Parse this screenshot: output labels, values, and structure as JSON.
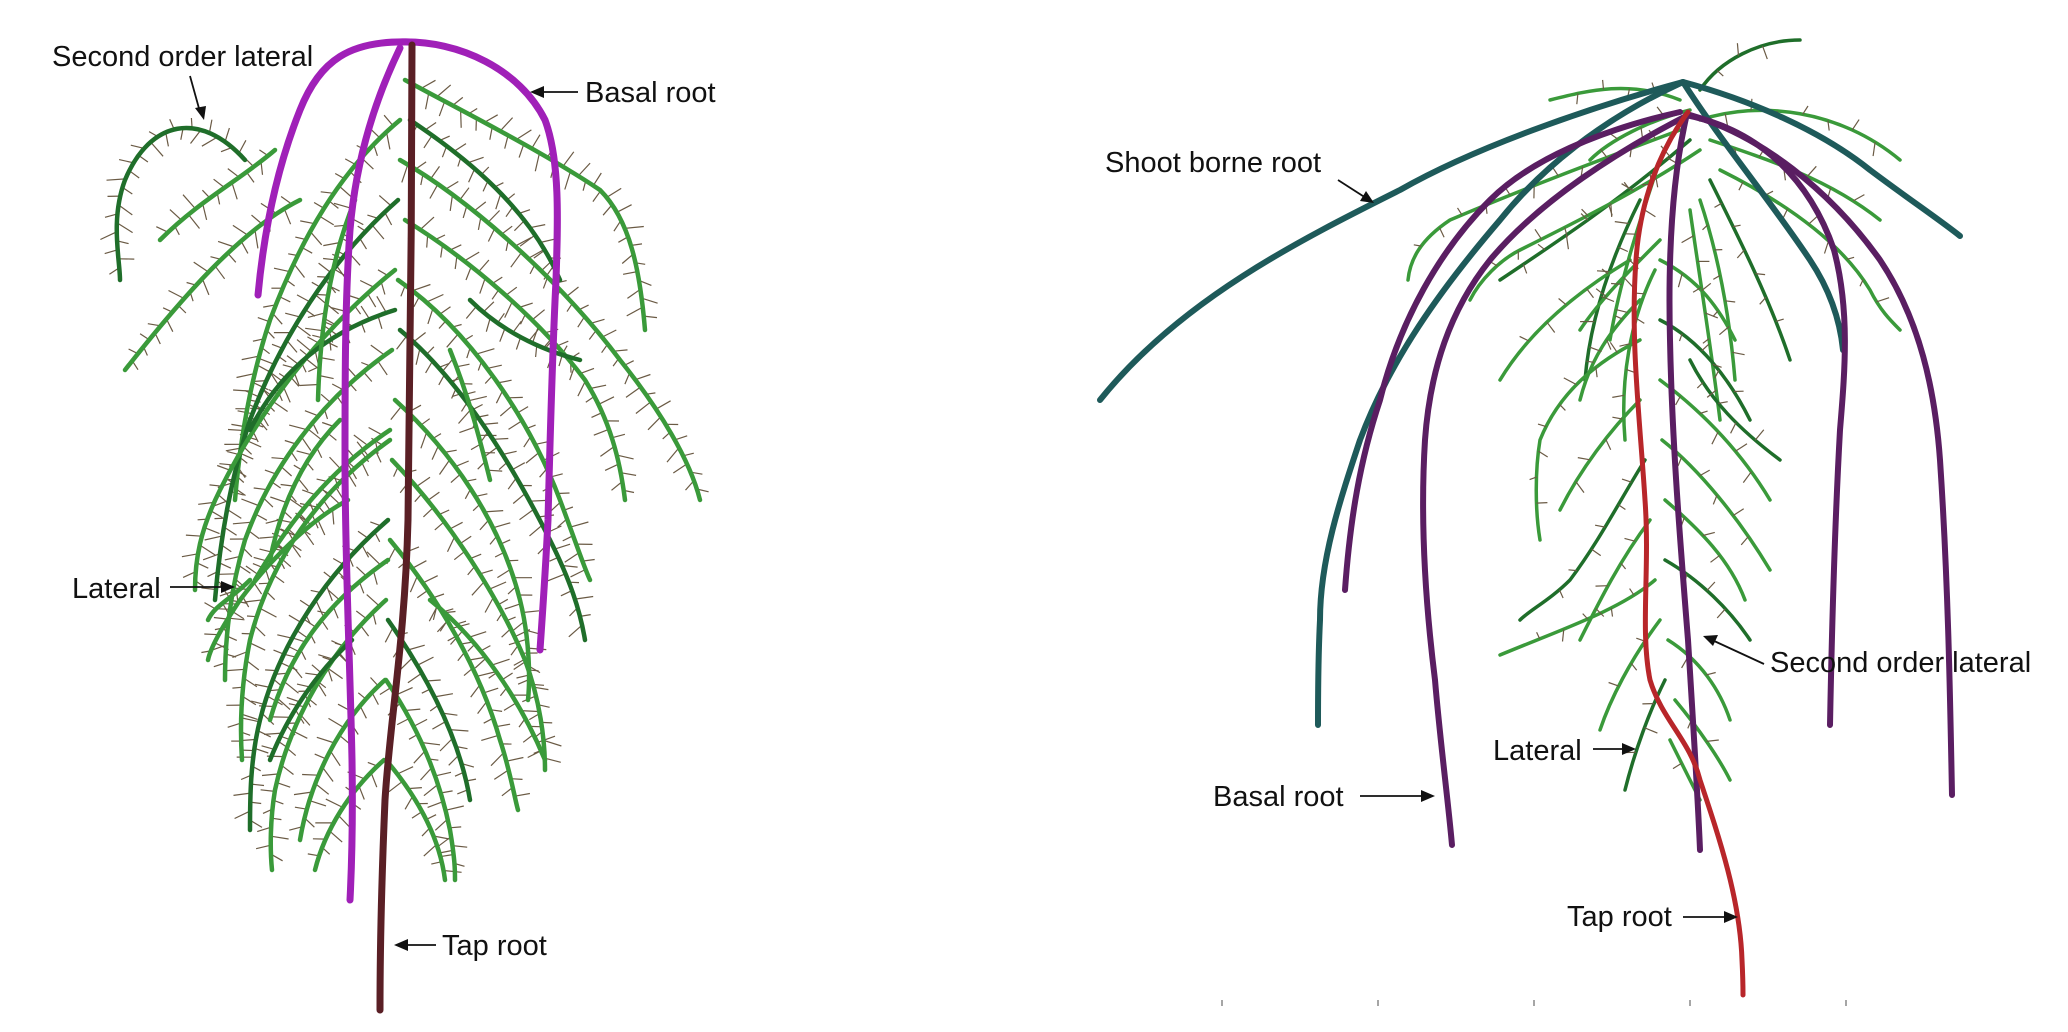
{
  "left_panel": {
    "labels": {
      "second_order_lateral": "Second order lateral",
      "basal_root": "Basal root",
      "lateral": "Lateral",
      "tap_root": "Tap root"
    }
  },
  "right_panel": {
    "labels": {
      "shoot_borne_root": "Shoot borne root",
      "second_order_lateral": "Second order lateral",
      "lateral": "Lateral",
      "basal_root": "Basal root",
      "tap_root": "Tap root"
    }
  },
  "colors": {
    "lateral": "#3a9a3a",
    "lateral_dark": "#1f6e2a",
    "second_order": "#6a5a44",
    "basal_left": "#a020b8",
    "tap_left": "#5a1f25",
    "basal_right": "#5a1e62",
    "shoot_borne": "#1e5a5a",
    "tap_right": "#b8262a"
  }
}
